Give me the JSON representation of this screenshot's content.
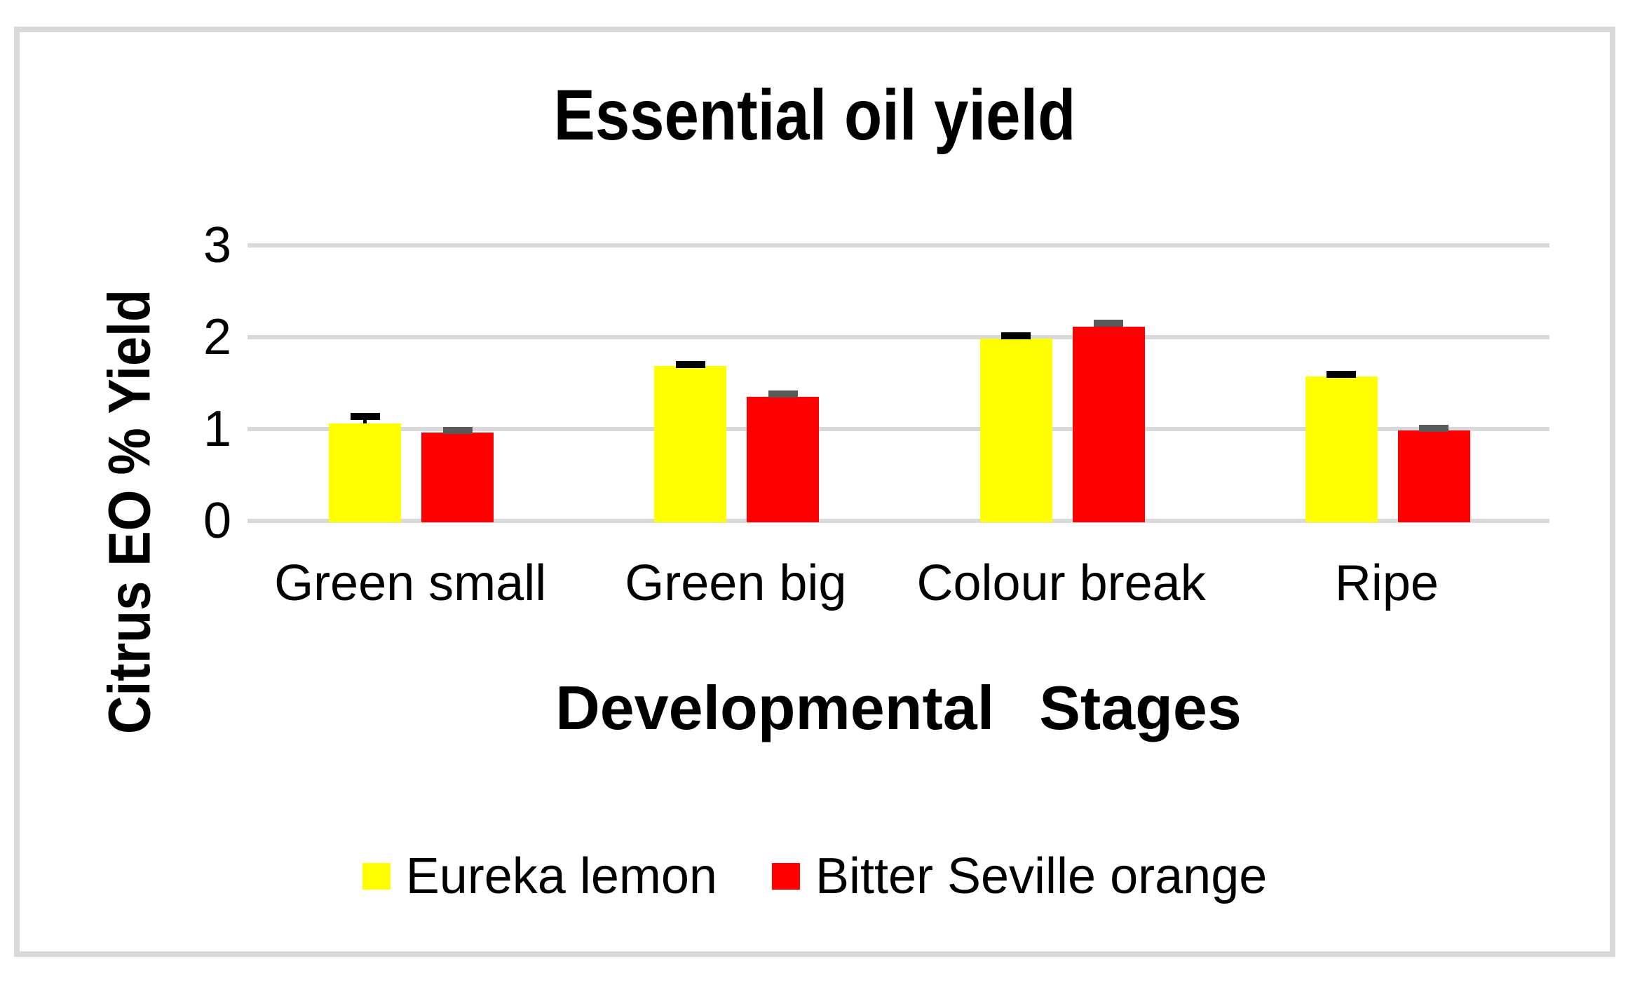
{
  "chart_data": {
    "type": "bar",
    "title": "Essential oil yield",
    "xlabel": "Developmental Stages",
    "ylabel": "Citrus EO % Yield",
    "categories": [
      "Green small",
      "Green big",
      "Colour break",
      "Ripe"
    ],
    "series": [
      {
        "name": "Eureka lemon",
        "color": "#ffff00",
        "values": [
          1.08,
          1.7,
          2.0,
          1.59
        ],
        "errors": [
          0.07,
          0.02,
          0.03,
          0.02
        ],
        "error_color": "#000000"
      },
      {
        "name": "Bitter Seville orange",
        "color": "#ff0000",
        "values": [
          0.98,
          1.37,
          2.13,
          1.0
        ],
        "errors": [
          0.02,
          0.03,
          0.04,
          0.02
        ],
        "error_color": "#595959"
      }
    ],
    "ylim": [
      0,
      3
    ],
    "yticks": [
      0,
      1,
      2,
      3
    ],
    "grid": true,
    "gridline_color": "#d9d9d9",
    "border_color": "#d9d9d9",
    "background_color": "#ffffff",
    "legend_position": "bottom",
    "bar_orientation": "vertical",
    "error_bars": "plus_direction_with_caps"
  }
}
